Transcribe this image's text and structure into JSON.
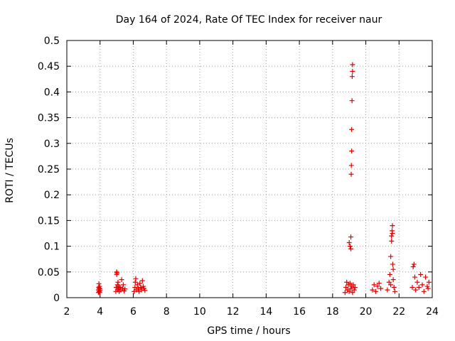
{
  "chart_data": {
    "type": "scatter",
    "title": "Day 164 of 2024, Rate Of TEC Index for receiver naur",
    "xlabel": "GPS time / hours",
    "ylabel": "ROTI / TECUs",
    "xlim": [
      2,
      24
    ],
    "ylim": [
      0,
      0.5
    ],
    "xticks": [
      "2",
      "4",
      "6",
      "8",
      "10",
      "12",
      "14",
      "16",
      "18",
      "20",
      "22",
      "24"
    ],
    "yticks": [
      "0",
      "0.05",
      "0.1",
      "0.15",
      "0.2",
      "0.25",
      "0.3",
      "0.35",
      "0.4",
      "0.45",
      "0.5"
    ],
    "grid": true,
    "marker": "plus",
    "color": "#e00000",
    "series": [
      {
        "x": [
          3.9,
          3.9,
          3.92,
          3.93,
          3.95,
          3.95,
          3.97,
          3.98,
          4.0,
          4.0,
          4.95,
          4.97,
          5.0,
          5.0,
          5.02,
          5.05,
          5.05,
          5.08,
          5.1,
          5.12,
          5.15,
          5.2,
          5.25,
          5.3,
          5.35,
          5.4,
          5.45,
          5.5,
          6.05,
          6.1,
          6.12,
          6.15,
          6.2,
          6.25,
          6.3,
          6.35,
          6.4,
          6.45,
          6.5,
          6.55,
          6.6,
          6.65,
          6.7,
          18.75,
          18.8,
          18.85,
          18.9,
          18.95,
          19.0,
          19.05,
          19.1,
          19.15,
          19.2,
          19.25,
          19.3,
          19.35,
          19.0,
          19.05,
          19.1,
          19.1,
          19.12,
          19.13,
          19.15,
          19.15,
          19.17,
          19.18,
          19.2,
          19.2,
          20.4,
          20.5,
          20.6,
          20.7,
          20.8,
          20.9,
          21.3,
          21.4,
          21.45,
          21.5,
          21.5,
          21.55,
          21.55,
          21.58,
          21.6,
          21.6,
          21.62,
          21.65,
          21.65,
          21.7,
          21.75,
          22.8,
          22.85,
          22.9,
          22.95,
          23.0,
          23.1,
          23.2,
          23.3,
          23.4,
          23.5,
          23.6,
          23.7,
          23.75,
          23.8
        ],
        "y": [
          0.01,
          0.015,
          0.02,
          0.027,
          0.012,
          0.018,
          0.022,
          0.01,
          0.014,
          0.017,
          0.012,
          0.02,
          0.045,
          0.05,
          0.048,
          0.025,
          0.015,
          0.03,
          0.018,
          0.022,
          0.012,
          0.02,
          0.015,
          0.035,
          0.018,
          0.025,
          0.013,
          0.017,
          0.012,
          0.02,
          0.03,
          0.037,
          0.015,
          0.025,
          0.018,
          0.012,
          0.028,
          0.02,
          0.015,
          0.033,
          0.022,
          0.018,
          0.014,
          0.01,
          0.02,
          0.03,
          0.015,
          0.025,
          0.012,
          0.028,
          0.018,
          0.022,
          0.01,
          0.025,
          0.015,
          0.02,
          0.107,
          0.1,
          0.095,
          0.118,
          0.24,
          0.257,
          0.285,
          0.327,
          0.383,
          0.43,
          0.44,
          0.453,
          0.015,
          0.025,
          0.012,
          0.022,
          0.028,
          0.018,
          0.015,
          0.03,
          0.045,
          0.025,
          0.08,
          0.11,
          0.12,
          0.13,
          0.14,
          0.125,
          0.065,
          0.055,
          0.035,
          0.02,
          0.012,
          0.02,
          0.06,
          0.065,
          0.04,
          0.015,
          0.03,
          0.02,
          0.045,
          0.025,
          0.012,
          0.04,
          0.022,
          0.018,
          0.03
        ]
      }
    ]
  }
}
